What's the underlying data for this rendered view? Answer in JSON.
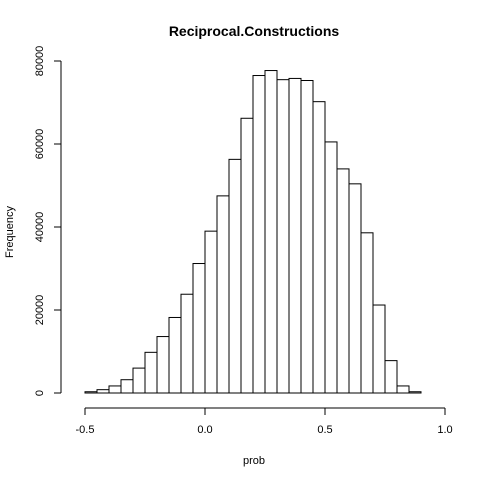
{
  "chart_data": {
    "type": "bar",
    "title": "Reciprocal.Constructions",
    "xlabel": "prob",
    "ylabel": "Frequency",
    "xlim": [
      -0.5,
      1.0
    ],
    "ylim": [
      0,
      80000
    ],
    "xticks": [
      -0.5,
      0.0,
      0.5,
      1.0
    ],
    "xtick_labels": [
      "-0.5",
      "0.0",
      "0.5",
      "1.0"
    ],
    "yticks": [
      0,
      20000,
      40000,
      60000,
      80000
    ],
    "ytick_labels": [
      "0",
      "20000",
      "40000",
      "60000",
      "80000"
    ],
    "bin_width": 0.05,
    "bin_start": -0.5,
    "values": [
      300,
      800,
      1700,
      3200,
      6000,
      9800,
      13600,
      18200,
      23800,
      31200,
      39000,
      47500,
      56300,
      66200,
      76500,
      77700,
      75500,
      75800,
      75300,
      70200,
      60500,
      54000,
      50400,
      38600,
      21200,
      7800,
      1700,
      300
    ],
    "grid": false
  }
}
